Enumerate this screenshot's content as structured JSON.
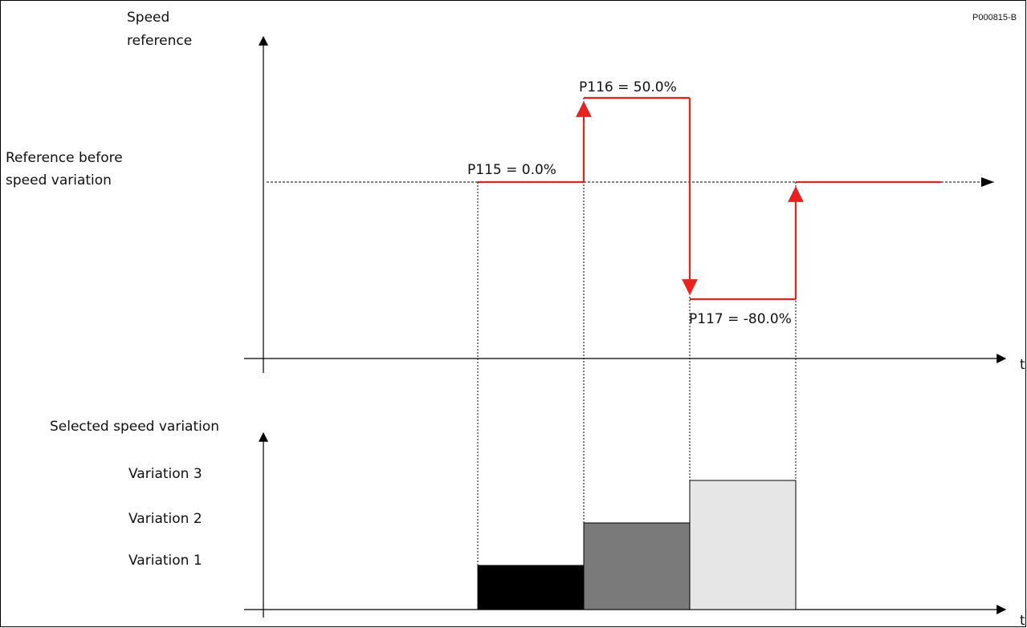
{
  "diagram_id": "P000815-B",
  "labels": {
    "y_axis_top_line1": "Speed",
    "y_axis_top_line2": "reference",
    "ref_line1": "Reference before",
    "ref_line2": "speed variation",
    "t_top": "t",
    "t_bottom": "t",
    "selected": "Selected speed variation",
    "variation3": "Variation 3",
    "variation2": "Variation 2",
    "variation1": "Variation 1",
    "p115": "P115 = 0.0%",
    "p116": "P116 = 50.0%",
    "p117": "P117 = -80.0%"
  },
  "colors": {
    "trace": "#e8231f",
    "axis": "#000000",
    "variation1_fill": "#000000",
    "variation2_fill": "#7a7a7a",
    "variation3_fill": "#e6e6e6"
  }
}
